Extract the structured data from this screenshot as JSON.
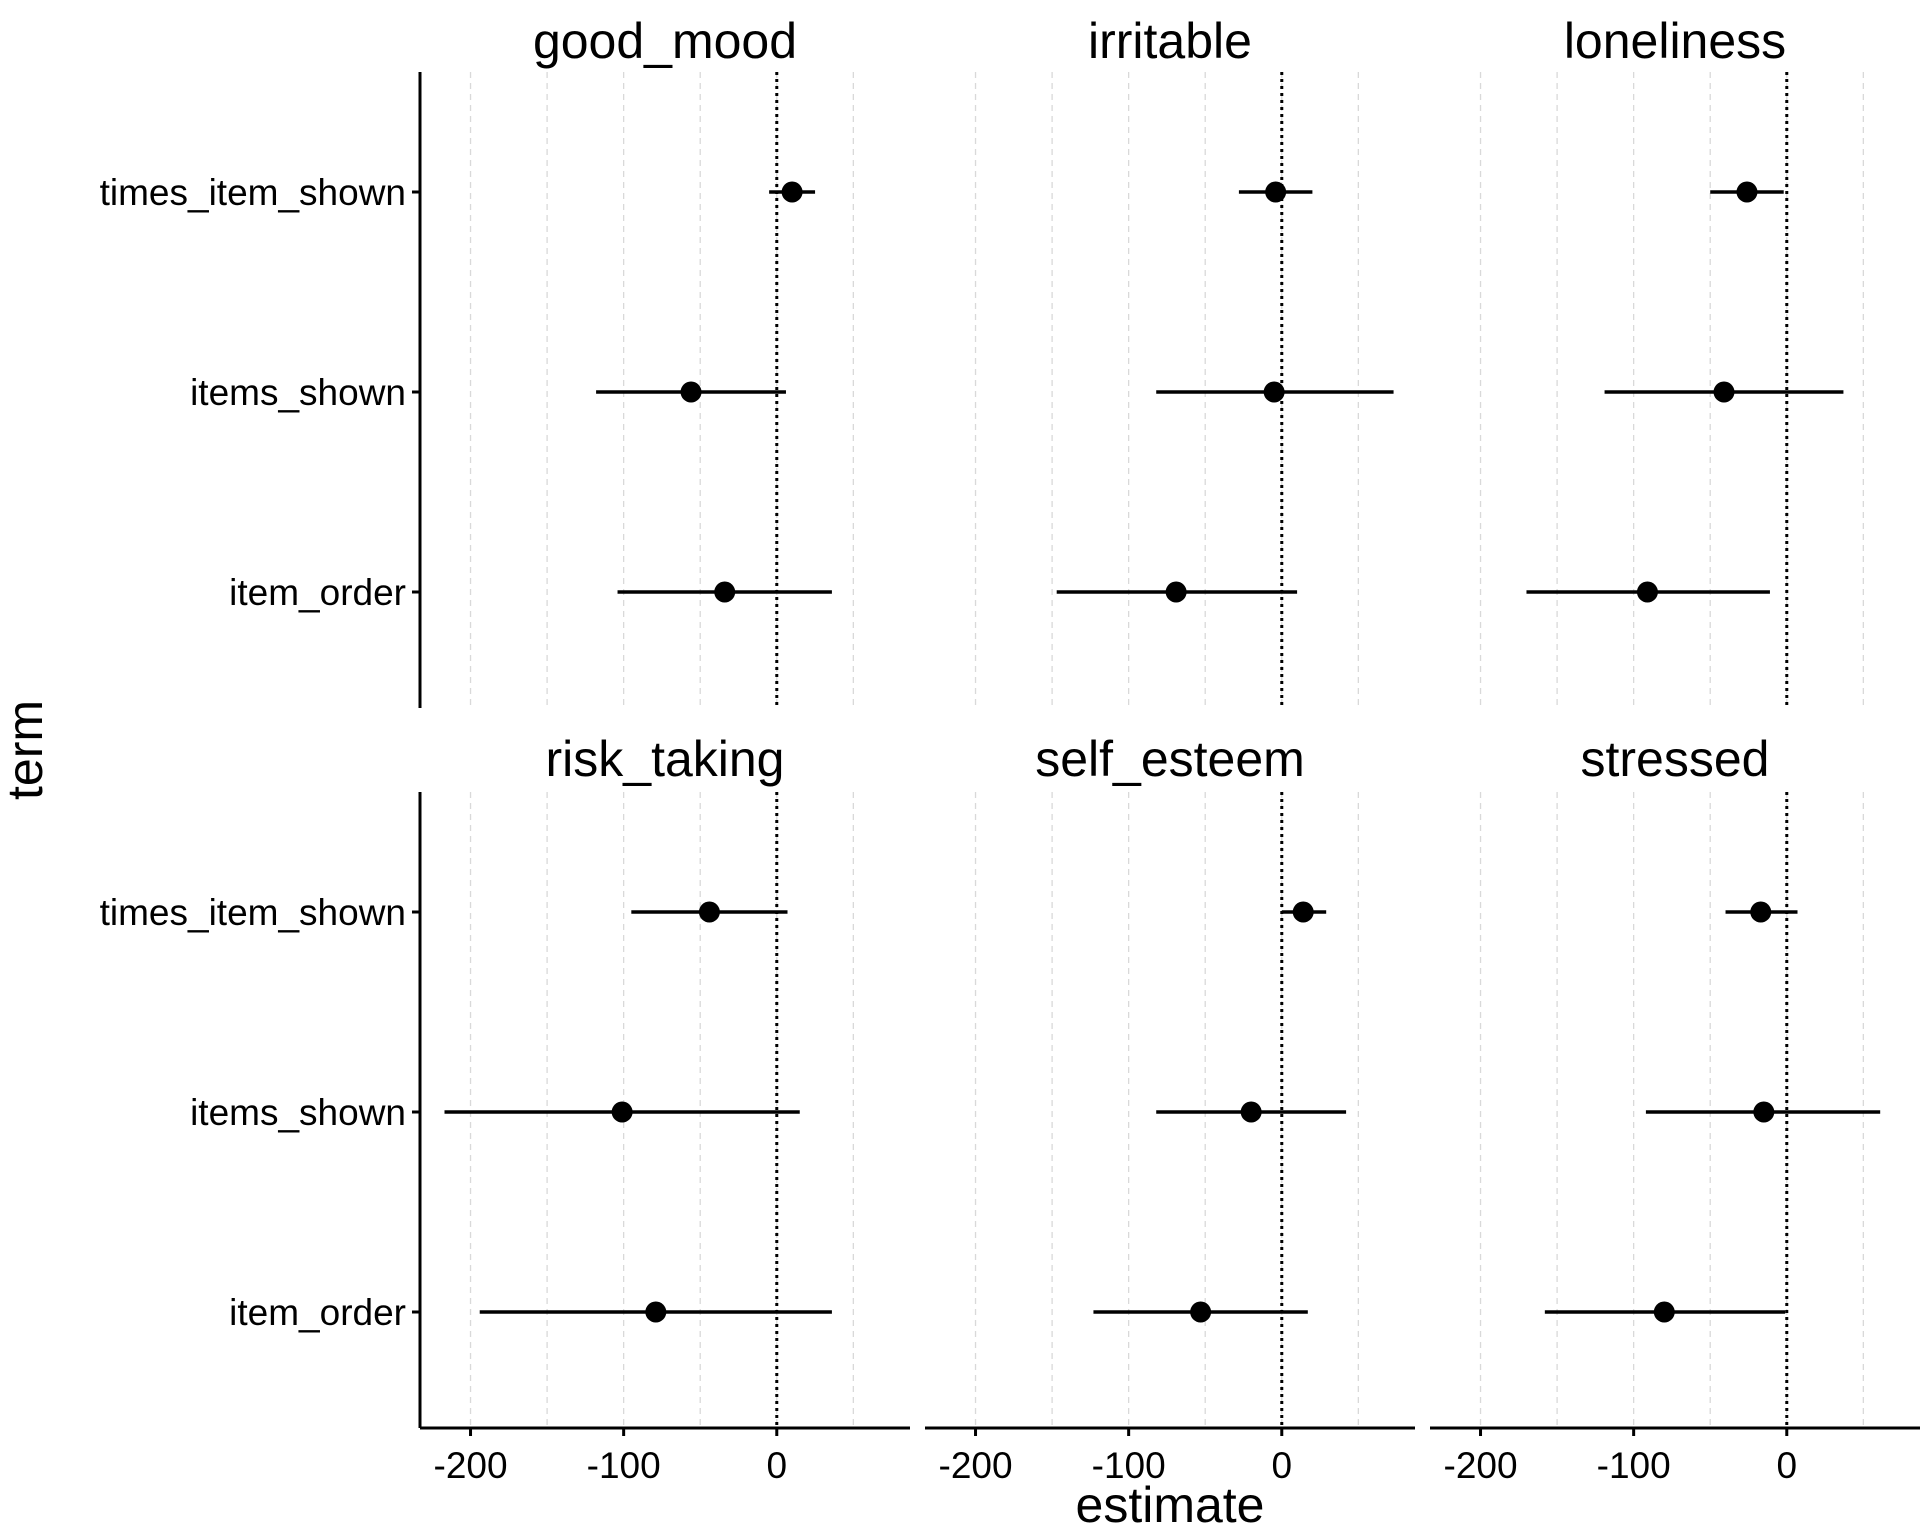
{
  "chart_data": {
    "type": "scatter",
    "subtype": "faceted coefficient plot (point estimate with interval)",
    "xlabel": "estimate",
    "ylabel": "term",
    "terms": [
      "times_item_shown",
      "items_shown",
      "item_order"
    ],
    "xlim": [
      -233,
      87
    ],
    "x_ticks": [
      -200,
      -100,
      0
    ],
    "x_tick_labels": [
      "-200",
      "-100",
      "0"
    ],
    "x_minor_grid": [
      -150,
      -50,
      50
    ],
    "reference_line": 0,
    "grid": "vertical dashed gridlines",
    "facets": [
      {
        "title": "good_mood",
        "points": [
          {
            "term": "times_item_shown",
            "estimate": 10,
            "lower": -5,
            "upper": 25
          },
          {
            "term": "items_shown",
            "estimate": -56,
            "lower": -118,
            "upper": 6
          },
          {
            "term": "item_order",
            "estimate": -34,
            "lower": -104,
            "upper": 36
          }
        ]
      },
      {
        "title": "irritable",
        "points": [
          {
            "term": "times_item_shown",
            "estimate": -4,
            "lower": -28,
            "upper": 20
          },
          {
            "term": "items_shown",
            "estimate": -5,
            "lower": -82,
            "upper": 73
          },
          {
            "term": "item_order",
            "estimate": -69,
            "lower": -147,
            "upper": 10
          }
        ]
      },
      {
        "title": "loneliness",
        "points": [
          {
            "term": "times_item_shown",
            "estimate": -26,
            "lower": -50,
            "upper": -2
          },
          {
            "term": "items_shown",
            "estimate": -41,
            "lower": -119,
            "upper": 37
          },
          {
            "term": "item_order",
            "estimate": -91,
            "lower": -170,
            "upper": -11
          }
        ]
      },
      {
        "title": "risk_taking",
        "points": [
          {
            "term": "times_item_shown",
            "estimate": -44,
            "lower": -95,
            "upper": 7
          },
          {
            "term": "items_shown",
            "estimate": -101,
            "lower": -217,
            "upper": 15
          },
          {
            "term": "item_order",
            "estimate": -79,
            "lower": -194,
            "upper": 36
          }
        ]
      },
      {
        "title": "self_esteem",
        "points": [
          {
            "term": "times_item_shown",
            "estimate": 14,
            "lower": 0,
            "upper": 29
          },
          {
            "term": "items_shown",
            "estimate": -20,
            "lower": -82,
            "upper": 42
          },
          {
            "term": "item_order",
            "estimate": -53,
            "lower": -123,
            "upper": 17
          }
        ]
      },
      {
        "title": "stressed",
        "points": [
          {
            "term": "times_item_shown",
            "estimate": -17,
            "lower": -40,
            "upper": 7
          },
          {
            "term": "items_shown",
            "estimate": -15,
            "lower": -92,
            "upper": 61
          },
          {
            "term": "item_order",
            "estimate": -80,
            "lower": -158,
            "upper": -1
          }
        ]
      }
    ]
  }
}
